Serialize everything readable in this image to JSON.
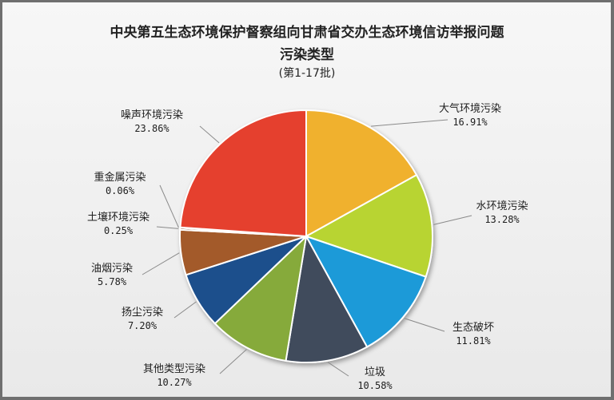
{
  "chart_data": {
    "type": "pie",
    "title": "中央第五生态环境保护督察组向甘肃省交办生态环境信访举报问题",
    "title_line2": "污染类型",
    "subtitle": "(第1-17批)",
    "slices": [
      {
        "name": "大气环境污染",
        "value": 16.91,
        "label": "16.91%",
        "color": "#f0b12f"
      },
      {
        "name": "水环境污染",
        "value": 13.28,
        "label": "13.28%",
        "color": "#b8d432"
      },
      {
        "name": "生态破坏",
        "value": 11.81,
        "label": "11.81%",
        "color": "#1f9ad8"
      },
      {
        "name": "垃圾",
        "value": 10.58,
        "label": "10.58%",
        "color": "#3f4c5c"
      },
      {
        "name": "其他类型污染",
        "value": 10.27,
        "label": "10.27%",
        "color": "#86aa3a"
      },
      {
        "name": "扬尘污染",
        "value": 7.2,
        "label": "7.20%",
        "color": "#1d4f8c"
      },
      {
        "name": "油烟污染",
        "value": 5.78,
        "label": "5.78%",
        "color": "#a35a2a"
      },
      {
        "name": "土壤环境污染",
        "value": 0.25,
        "label": "0.25%",
        "color": "#7a3b12"
      },
      {
        "name": "重金属污染",
        "value": 0.06,
        "label": "0.06%",
        "color": "#b0381f"
      },
      {
        "name": "噪声环境污染",
        "value": 23.86,
        "label": "23.86%",
        "color": "#e5412f"
      }
    ],
    "start_angle": "12 o'clock",
    "direction": "clockwise",
    "legend": "none"
  }
}
